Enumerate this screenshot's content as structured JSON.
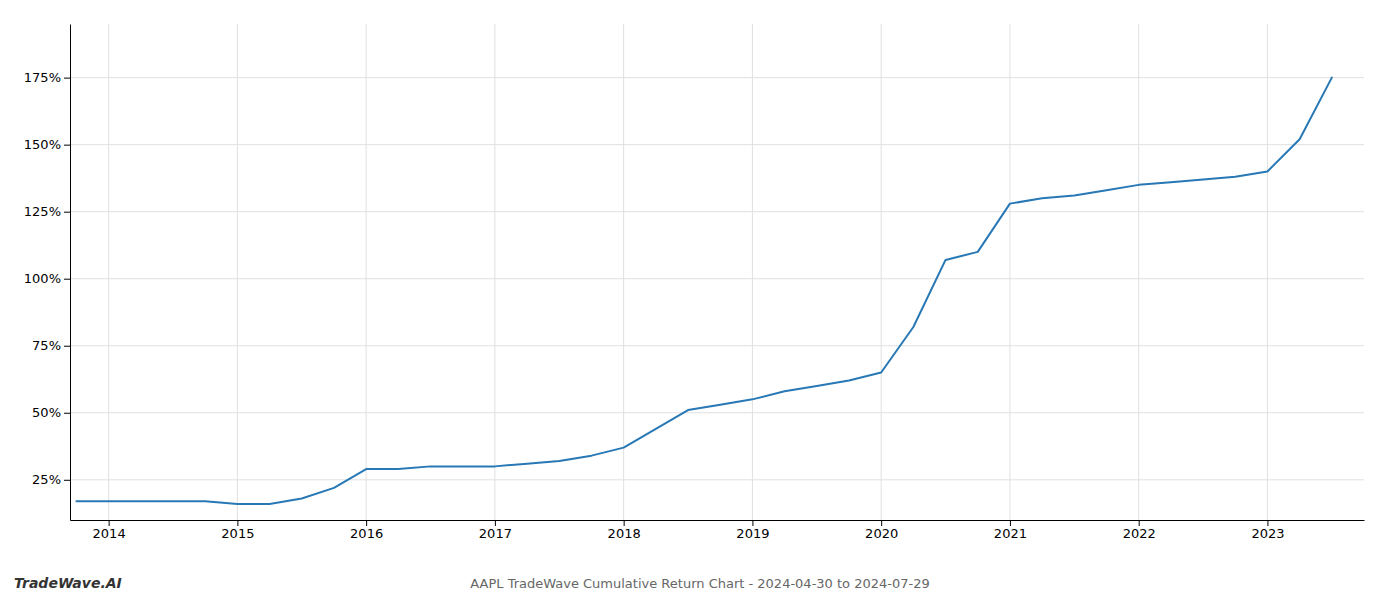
{
  "chart_data": {
    "type": "line",
    "title": "AAPL TradeWave Cumulative Return Chart - 2024-04-30 to 2024-07-29",
    "annotations": [
      "TradeWave.AI"
    ],
    "x": [
      2013.75,
      2014.0,
      2014.25,
      2014.5,
      2014.75,
      2015.0,
      2015.25,
      2015.5,
      2015.75,
      2016.0,
      2016.25,
      2016.5,
      2016.75,
      2017.0,
      2017.25,
      2017.5,
      2017.75,
      2018.0,
      2018.25,
      2018.5,
      2018.75,
      2019.0,
      2019.25,
      2019.5,
      2019.75,
      2020.0,
      2020.25,
      2020.5,
      2020.75,
      2021.0,
      2021.25,
      2021.5,
      2021.75,
      2022.0,
      2022.25,
      2022.5,
      2022.75,
      2023.0,
      2023.25,
      2023.5
    ],
    "values": [
      17,
      17,
      17,
      17,
      17,
      16,
      16,
      18,
      22,
      29,
      29,
      30,
      30,
      30,
      31,
      32,
      34,
      37,
      44,
      51,
      53,
      55,
      58,
      60,
      62,
      65,
      82,
      107,
      110,
      128,
      130,
      131,
      133,
      135,
      136,
      137,
      138,
      140,
      152,
      175
    ],
    "color": "#2878b5",
    "xlim": [
      2013.7,
      2023.75
    ],
    "ylim": [
      10,
      195
    ],
    "xticks": [
      2014,
      2015,
      2016,
      2017,
      2018,
      2019,
      2020,
      2021,
      2022,
      2023
    ],
    "yticks": [
      {
        "value": 25,
        "label": "25%"
      },
      {
        "value": 50,
        "label": "50%"
      },
      {
        "value": 75,
        "label": "75%"
      },
      {
        "value": 100,
        "label": "100%"
      },
      {
        "value": 125,
        "label": "125%"
      },
      {
        "value": 150,
        "label": "150%"
      },
      {
        "value": 175,
        "label": "175%"
      }
    ],
    "grid": true
  }
}
